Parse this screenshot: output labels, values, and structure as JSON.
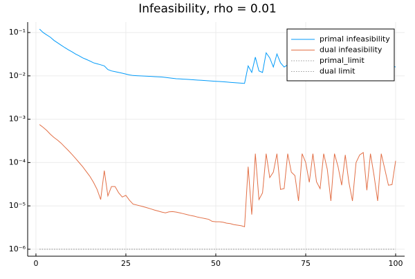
{
  "chart_data": {
    "type": "line",
    "title": "Infeasibility, rho = 0.01",
    "x": [
      1,
      2,
      3,
      4,
      5,
      6,
      7,
      8,
      9,
      10,
      11,
      12,
      13,
      14,
      15,
      16,
      17,
      18,
      19,
      20,
      21,
      22,
      23,
      24,
      25,
      26,
      27,
      28,
      29,
      30,
      31,
      32,
      33,
      34,
      35,
      36,
      37,
      38,
      39,
      40,
      41,
      42,
      43,
      44,
      45,
      46,
      47,
      48,
      49,
      50,
      51,
      52,
      53,
      54,
      55,
      56,
      57,
      58,
      59,
      60,
      61,
      62,
      63,
      64,
      65,
      66,
      67,
      68,
      69,
      70,
      71,
      72,
      73,
      74,
      75,
      76,
      77,
      78,
      79,
      80,
      81,
      82,
      83,
      84,
      85,
      86,
      87,
      88,
      89,
      90,
      91,
      92,
      93,
      94,
      95,
      96,
      97,
      98,
      99,
      100
    ],
    "series": [
      {
        "name": "primal infeasibility",
        "color": "#009af9",
        "style": "solid",
        "values": [
          0.12,
          0.1,
          0.088,
          0.078,
          0.066,
          0.058,
          0.051,
          0.045,
          0.04,
          0.036,
          0.032,
          0.029,
          0.026,
          0.024,
          0.022,
          0.02,
          0.019,
          0.018,
          0.017,
          0.014,
          0.013,
          0.0125,
          0.012,
          0.0115,
          0.011,
          0.0105,
          0.0102,
          0.0101,
          0.01,
          0.0099,
          0.0098,
          0.0097,
          0.0096,
          0.0095,
          0.0094,
          0.0092,
          0.009,
          0.0088,
          0.0086,
          0.0085,
          0.0084,
          0.0083,
          0.0082,
          0.0081,
          0.008,
          0.0079,
          0.0078,
          0.0077,
          0.0076,
          0.0075,
          0.0074,
          0.0073,
          0.0072,
          0.0071,
          0.007,
          0.0069,
          0.0068,
          0.0067,
          0.017,
          0.012,
          0.027,
          0.013,
          0.012,
          0.034,
          0.026,
          0.016,
          0.032,
          0.02,
          0.016,
          0.018,
          0.03,
          0.02,
          0.016,
          0.028,
          0.022,
          0.017,
          0.03,
          0.019,
          0.016,
          0.029,
          0.021,
          0.017,
          0.031,
          0.02,
          0.016,
          0.028,
          0.023,
          0.017,
          0.03,
          0.019,
          0.016,
          0.029,
          0.02,
          0.017,
          0.03,
          0.021,
          0.018,
          0.017,
          0.017,
          0.016
        ]
      },
      {
        "name": "dual infeasibility",
        "color": "#e26f46",
        "style": "solid",
        "values": [
          0.00075,
          0.00065,
          0.00055,
          0.00045,
          0.00038,
          0.00033,
          0.00028,
          0.00023,
          0.00019,
          0.000155,
          0.000125,
          0.0001,
          8e-05,
          6.2e-05,
          4.8e-05,
          3.5e-05,
          2.4e-05,
          1.4e-05,
          6.5e-05,
          1.7e-05,
          2.8e-05,
          2.8e-05,
          2e-05,
          1.6e-05,
          1.75e-05,
          1.35e-05,
          1.1e-05,
          1.05e-05,
          1e-05,
          9.5e-06,
          9e-06,
          8.5e-06,
          8e-06,
          7.6e-06,
          7.2e-06,
          6.9e-06,
          7.3e-06,
          7.4e-06,
          7.2e-06,
          6.9e-06,
          6.6e-06,
          6.3e-06,
          6e-06,
          5.8e-06,
          5.5e-06,
          5.3e-06,
          5.1e-06,
          4.9e-06,
          4.4e-06,
          4.3e-06,
          4.3e-06,
          4.2e-06,
          4e-06,
          3.9e-06,
          3.7e-06,
          3.6e-06,
          3.5e-06,
          3.3e-06,
          8e-05,
          6.3e-06,
          0.00016,
          1.4e-05,
          2e-05,
          0.00016,
          4.5e-05,
          6e-05,
          0.00016,
          2.4e-05,
          2.5e-05,
          0.00016,
          6e-05,
          5e-05,
          1.3e-05,
          0.00016,
          0.0001,
          3.5e-05,
          0.00016,
          3.6e-05,
          2.5e-05,
          0.00016,
          7e-05,
          1.3e-05,
          0.00016,
          8e-05,
          3e-05,
          0.00015,
          3.5e-05,
          1.3e-05,
          0.0001,
          0.00015,
          0.00017,
          2.3e-05,
          0.00016,
          5e-05,
          1.3e-05,
          0.00016,
          7e-05,
          3e-05,
          3.1e-05,
          0.00011
        ]
      },
      {
        "name": "primal_limit",
        "color": "#9a9a9a",
        "style": "dotted",
        "x": [
          1,
          100
        ],
        "values": [
          1e-06,
          1e-06
        ]
      },
      {
        "name": "dual limit",
        "color": "#9a9a9a",
        "style": "dotted",
        "x": [
          1,
          100
        ],
        "values": [
          1e-06,
          1e-06
        ]
      }
    ],
    "xlim": [
      -2.3,
      102.5
    ],
    "xticks": [
      0,
      25,
      50,
      75,
      100
    ],
    "ylim": [
      6.9e-07,
      0.174
    ],
    "log_y": true,
    "yticks": [
      {
        "value": 1e-06,
        "label": "10⁻⁶"
      },
      {
        "value": 1e-05,
        "label": "10⁻⁵"
      },
      {
        "value": 0.0001,
        "label": "10⁻⁴"
      },
      {
        "value": 0.001,
        "label": "10⁻³"
      },
      {
        "value": 0.01,
        "label": "10⁻²"
      },
      {
        "value": 0.1,
        "label": "10⁻¹"
      }
    ],
    "grid": true,
    "legend": "top-right"
  }
}
